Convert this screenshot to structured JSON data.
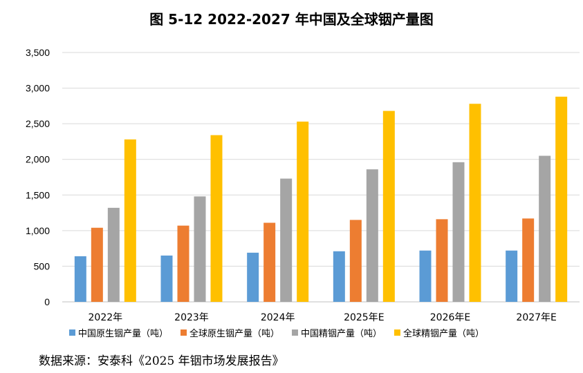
{
  "chart_data": {
    "type": "bar",
    "title": "图 5-12 2022-2027 年中国及全球铟产量图",
    "categories": [
      "2022年",
      "2023年",
      "2024年",
      "2025年E",
      "2026年E",
      "2027年E"
    ],
    "series": [
      {
        "name": "中国原生铟产量（吨）",
        "color": "#5B9BD5",
        "values": [
          640,
          650,
          690,
          710,
          720,
          720
        ]
      },
      {
        "name": "全球原生铟产量（吨）",
        "color": "#ED7D31",
        "values": [
          1040,
          1070,
          1110,
          1150,
          1160,
          1170
        ]
      },
      {
        "name": "中国精铟产量（吨）",
        "color": "#A5A5A5",
        "values": [
          1320,
          1480,
          1730,
          1860,
          1960,
          2050
        ]
      },
      {
        "name": "全球精铟产量（吨）",
        "color": "#FFC000",
        "values": [
          2280,
          2340,
          2530,
          2680,
          2780,
          2880
        ]
      }
    ],
    "ylim": [
      0,
      3500
    ],
    "yticks": [
      "0",
      "500",
      "1,000",
      "1,500",
      "2,000",
      "2,500",
      "3,000",
      "3,500"
    ],
    "ytick_values": [
      0,
      500,
      1000,
      1500,
      2000,
      2500,
      3000,
      3500
    ],
    "grid": true,
    "legend_position": "bottom"
  },
  "source": "数据来源：安泰科《2025 年铟市场发展报告》"
}
